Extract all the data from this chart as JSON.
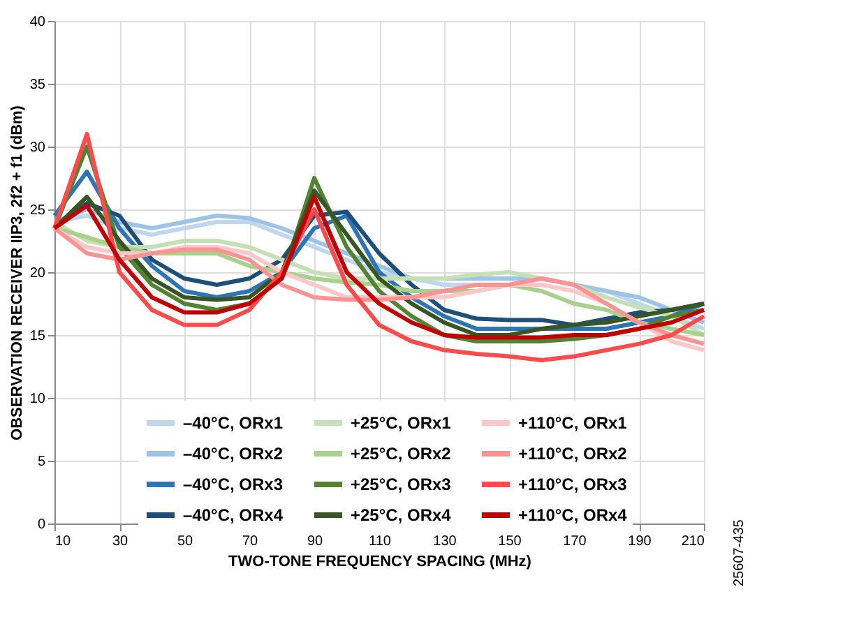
{
  "chart_data": {
    "type": "line",
    "xlabel": "TWO-TONE FREQUENCY SPACING (MHz)",
    "ylabel": "OBSERVATION RECEIVER IIP3, 2f2 + f1 (dBm)",
    "x": [
      10,
      20,
      30,
      40,
      50,
      60,
      70,
      80,
      90,
      100,
      110,
      120,
      130,
      140,
      150,
      160,
      170,
      180,
      190,
      200,
      210
    ],
    "xlim": [
      10,
      210
    ],
    "xticks": [
      10,
      30,
      50,
      70,
      90,
      110,
      130,
      150,
      170,
      190,
      210
    ],
    "ylim": [
      0,
      40
    ],
    "yticks": [
      0,
      5,
      10,
      15,
      20,
      25,
      30,
      35,
      40
    ],
    "grid": true,
    "legend": "bottom",
    "line_style": "solid",
    "marker": "none",
    "annotations": [
      "25607-435"
    ],
    "series": [
      {
        "name": "–40°C, ORx1",
        "color": "#bdd7ee",
        "values": [
          24,
          24.5,
          23.5,
          23,
          23.5,
          24,
          24,
          23,
          22,
          21,
          20,
          19.5,
          19,
          19,
          19,
          19.5,
          19,
          18.5,
          17.5,
          16.5,
          15.5
        ]
      },
      {
        "name": "–40°C, ORx2",
        "color": "#9dc3e6",
        "values": [
          24,
          25,
          24,
          23.5,
          24,
          24.5,
          24.3,
          23.5,
          22.5,
          21.5,
          20.5,
          19.5,
          19.5,
          19.5,
          19.5,
          19.5,
          19,
          18.5,
          18,
          17,
          16
        ]
      },
      {
        "name": "–40°C, ORx3",
        "color": "#2e75b6",
        "values": [
          24.5,
          28,
          23.5,
          20.5,
          18.5,
          18,
          18.5,
          20,
          23.5,
          24.5,
          20,
          18,
          16.5,
          15.5,
          15.5,
          15.5,
          15.5,
          15.5,
          16,
          16.5,
          17.5
        ]
      },
      {
        "name": "–40°C, ORx4",
        "color": "#1f4e79",
        "values": [
          23.5,
          25.5,
          24.5,
          21,
          19.5,
          19,
          19.5,
          21,
          24.5,
          24.8,
          21.5,
          19,
          17,
          16.3,
          16.2,
          16.2,
          15.8,
          16.3,
          16.8,
          17,
          17.5
        ]
      },
      {
        "name": "+25°C, ORx1",
        "color": "#c5e0b4",
        "values": [
          24,
          22.5,
          22,
          22,
          22.5,
          22.5,
          22,
          21,
          20,
          19.5,
          19.5,
          19.5,
          19.5,
          19.8,
          20,
          19.5,
          19,
          18,
          17.2,
          16.5,
          15
        ]
      },
      {
        "name": "+25°C, ORx2",
        "color": "#a9d18e",
        "values": [
          23.5,
          22.8,
          22,
          21.5,
          21.5,
          21.5,
          20.5,
          20,
          19.5,
          19.2,
          19,
          18.5,
          18.5,
          18.5,
          19,
          18.5,
          17.5,
          17,
          16,
          15.5,
          15
        ]
      },
      {
        "name": "+25°C, ORx3",
        "color": "#548235",
        "values": [
          23.5,
          30,
          22,
          19,
          17.5,
          17,
          17.5,
          19.5,
          27.5,
          22,
          18.5,
          16.5,
          15,
          14.5,
          14.5,
          14.5,
          14.7,
          15,
          15.5,
          16.5,
          17
        ]
      },
      {
        "name": "+25°C, ORx4",
        "color": "#375623",
        "values": [
          23.5,
          26,
          22.5,
          19.5,
          18,
          17.8,
          18,
          20,
          26.5,
          23,
          19.5,
          17.5,
          16,
          15,
          15,
          15.5,
          15.8,
          16,
          16.5,
          17,
          17.5
        ]
      },
      {
        "name": "+110°C, ORx1",
        "color": "#ffc7c7",
        "values": [
          23.5,
          22,
          21.5,
          21.5,
          22,
          22,
          21.5,
          20,
          19,
          18,
          18,
          18,
          18,
          18.5,
          19,
          19,
          18.5,
          17.5,
          16,
          14.5,
          13.8
        ]
      },
      {
        "name": "+110°C, ORx2",
        "color": "#ff9393",
        "values": [
          23.5,
          21.5,
          21,
          21.5,
          21.8,
          21.8,
          21,
          19,
          18,
          17.8,
          17.8,
          18,
          18.5,
          19,
          19,
          19.5,
          19,
          17.5,
          16,
          15,
          14.3
        ]
      },
      {
        "name": "+110°C, ORx3",
        "color": "#ff4b4b",
        "values": [
          23.5,
          31,
          20,
          17,
          15.8,
          15.8,
          17,
          20,
          25,
          19,
          15.8,
          14.5,
          13.8,
          13.5,
          13.3,
          13,
          13.3,
          13.8,
          14.3,
          15,
          16.5
        ]
      },
      {
        "name": "+110°C, ORx4",
        "color": "#c00000",
        "values": [
          23.5,
          25.3,
          21,
          18,
          16.8,
          16.8,
          17.5,
          19.5,
          26,
          20,
          17.5,
          16,
          15,
          14.8,
          14.8,
          14.8,
          15,
          15,
          15.5,
          16,
          17
        ]
      }
    ]
  }
}
